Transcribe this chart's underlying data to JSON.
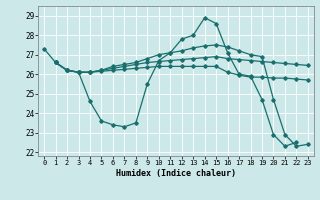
{
  "title": "",
  "xlabel": "Humidex (Indice chaleur)",
  "background_color": "#cce8e8",
  "grid_color": "#ffffff",
  "line_color": "#1a6e6e",
  "xlim": [
    -0.5,
    23.5
  ],
  "ylim": [
    21.8,
    29.5
  ],
  "yticks": [
    22,
    23,
    24,
    25,
    26,
    27,
    28,
    29
  ],
  "xticks": [
    0,
    1,
    2,
    3,
    4,
    5,
    6,
    7,
    8,
    9,
    10,
    11,
    12,
    13,
    14,
    15,
    16,
    17,
    18,
    19,
    20,
    21,
    22,
    23
  ],
  "c1_x": [
    0,
    1,
    2,
    3,
    4,
    5,
    6,
    7,
    8,
    9,
    10,
    11,
    12,
    13,
    14,
    15,
    16,
    17,
    18,
    19,
    20,
    21,
    22
  ],
  "c1_y": [
    27.3,
    26.6,
    26.2,
    26.1,
    24.6,
    23.6,
    23.4,
    23.3,
    23.5,
    25.5,
    26.7,
    27.1,
    27.8,
    28.0,
    28.9,
    28.6,
    27.1,
    26.0,
    25.9,
    24.7,
    22.9,
    22.3,
    22.5
  ],
  "c2_x": [
    1,
    2,
    3,
    4,
    5,
    6,
    7,
    8,
    9,
    10,
    11,
    12,
    13,
    14,
    15,
    16,
    17,
    18,
    19,
    20,
    21,
    22,
    23
  ],
  "c2_y": [
    26.6,
    26.2,
    26.1,
    26.1,
    26.15,
    26.2,
    26.25,
    26.3,
    26.35,
    26.4,
    26.4,
    26.4,
    26.4,
    26.4,
    26.4,
    26.1,
    25.95,
    25.85,
    25.85,
    25.8,
    25.8,
    25.75,
    25.7
  ],
  "c3_x": [
    1,
    2,
    3,
    4,
    5,
    6,
    7,
    8,
    9,
    10,
    11,
    12,
    13,
    14,
    15,
    16,
    17,
    18,
    19,
    20,
    21,
    22,
    23
  ],
  "c3_y": [
    26.6,
    26.2,
    26.1,
    26.1,
    26.2,
    26.3,
    26.4,
    26.5,
    26.6,
    26.65,
    26.7,
    26.75,
    26.8,
    26.85,
    26.9,
    26.8,
    26.75,
    26.7,
    26.65,
    26.6,
    26.55,
    26.5,
    26.45
  ],
  "c4_x": [
    1,
    2,
    3,
    4,
    5,
    6,
    7,
    8,
    9,
    10,
    11,
    12,
    13,
    14,
    15,
    16,
    17,
    18,
    19,
    20,
    21,
    22,
    23
  ],
  "c4_y": [
    26.6,
    26.2,
    26.1,
    26.1,
    26.2,
    26.4,
    26.5,
    26.6,
    26.8,
    27.0,
    27.1,
    27.2,
    27.35,
    27.45,
    27.5,
    27.4,
    27.2,
    27.0,
    26.9,
    24.7,
    22.9,
    22.3,
    22.4
  ]
}
